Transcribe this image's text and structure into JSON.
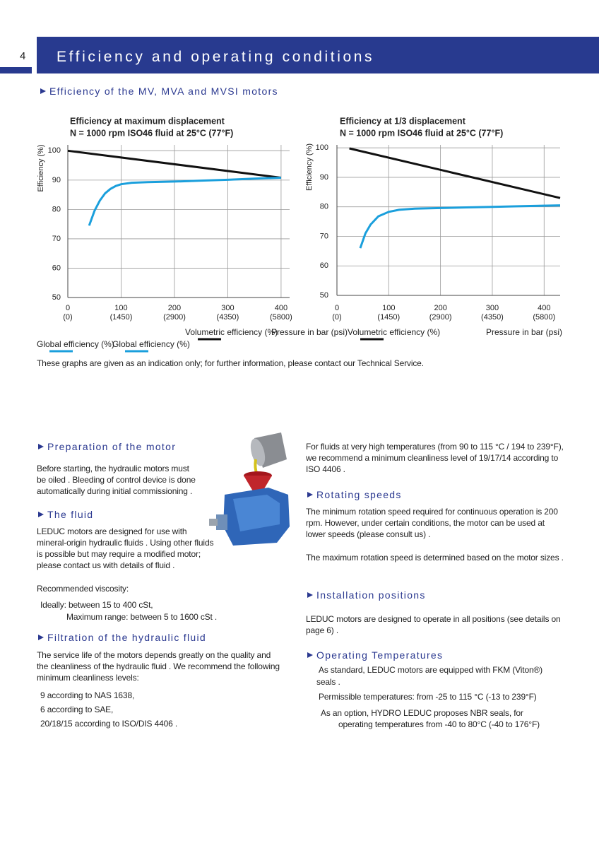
{
  "header": {
    "page_number": "4",
    "title": "Efficiency and operating conditions"
  },
  "section_heading": "Efficiency of the MV, MVA and MVSI motors",
  "chart_data": [
    {
      "type": "line",
      "title": "Efficiency at maximum displacement",
      "subtitle": "N = 1000 rpm ISO46 fluid at 25°C (77°F)",
      "x_label": "Pressure in bar (psi)",
      "y_label": "Efficiency (%)",
      "xlim": [
        0,
        416
      ],
      "xticks": [
        0,
        100,
        200,
        300,
        400
      ],
      "xtick_psi_labels": [
        "(0)",
        "(1450)",
        "(2900)",
        "(4350)",
        "(5800)"
      ],
      "ylim": [
        50,
        102
      ],
      "yticks": [
        50,
        60,
        70,
        80,
        90,
        100
      ],
      "grid": true,
      "series": [
        {
          "name": "Volumetric efficiency (%)",
          "color": "#111111",
          "x": [
            0,
            400
          ],
          "values": [
            100,
            90.8
          ]
        },
        {
          "name": "Global efficiency (%)",
          "color": "#1a9fdc",
          "x": [
            40,
            50,
            60,
            70,
            80,
            90,
            100,
            120,
            150,
            200,
            250,
            300,
            350,
            400
          ],
          "values": [
            74.5,
            79.5,
            83,
            85.5,
            87,
            88,
            88.6,
            89.1,
            89.3,
            89.5,
            89.8,
            90.1,
            90.5,
            90.8
          ]
        }
      ]
    },
    {
      "type": "line",
      "title": "Efficiency at 1/3 displacement",
      "subtitle": "N = 1000 rpm ISO46 fluid at 25°C (77°F)",
      "x_label": "Pressure in bar (psi)",
      "y_label": "Efficiency (%)",
      "xlim": [
        0,
        431
      ],
      "xticks": [
        0,
        100,
        200,
        300,
        400
      ],
      "xtick_psi_labels": [
        "(0)",
        "(1450)",
        "(2900)",
        "(4350)",
        "(5800)"
      ],
      "ylim": [
        50,
        101
      ],
      "yticks": [
        50,
        60,
        70,
        80,
        90,
        100
      ],
      "grid": true,
      "series": [
        {
          "name": "Volumetric efficiency (%)",
          "color": "#111111",
          "x": [
            24,
            431
          ],
          "values": [
            99.8,
            83
          ]
        },
        {
          "name": "Global efficiency (%)",
          "color": "#1a9fdc",
          "x": [
            45,
            55,
            65,
            80,
            100,
            120,
            150,
            200,
            250,
            300,
            350,
            431
          ],
          "values": [
            66,
            71,
            74,
            76.8,
            78.3,
            79,
            79.4,
            79.6,
            79.8,
            80,
            80.2,
            80.5
          ]
        }
      ]
    }
  ],
  "chart_note": "These graphs are given as an indication only; for further information, please contact our Technical Service.",
  "left_column": {
    "preparation": {
      "heading": "Preparation of the motor",
      "lines": [
        "Before starting, the hydraulic motors must",
        "be oiled . Bleeding of control device is done",
        "automatically during initial commissioning ."
      ]
    },
    "fluid": {
      "heading": "The fluid",
      "lines": [
        "LEDUC motors are designed for use with",
        "mineral-origin hydraulic fluids . Using other fluids",
        "is possible but may require a modified motor;",
        "please contact us with details of fluid ."
      ]
    },
    "viscosity": {
      "label": "Recommended viscosity:",
      "ideal": "Ideally: between 15 to 400 cSt,",
      "maximum": "Maximum range: between 5 to 1600 cSt ."
    },
    "filtration": {
      "heading": "Filtration of the hydraulic fluid",
      "lines": [
        "The service life of the motors depends greatly on the quality and",
        "the cleanliness of the hydraulic fluid . We recommend the following",
        "minimum cleanliness levels:"
      ],
      "levels": [
        "9 according to NAS 1638,",
        "6 according to SAE,",
        "20/18/15 according to ISO/DIS 4406 ."
      ]
    }
  },
  "right_column": {
    "high_temperature": {
      "lines": [
        "For fluids at very high temperatures (from 90 to 115 °C / 194 to 239°F),",
        "we recommend a minimum cleanliness level of 19/17/14 according to",
        "ISO 4406 ."
      ]
    },
    "rotating_speeds": {
      "heading": "Rotating speeds",
      "lines": [
        "The minimum rotation speed required for continuous operation is 200",
        "rpm. However, under certain conditions, the motor can be used at",
        "lower speeds (please consult us) ."
      ],
      "maximum": "The maximum rotation speed is determined based on the motor sizes ."
    },
    "installation": {
      "heading": "Installation positions",
      "lines": [
        "LEDUC motors are designed to operate in all positions (see details on",
        "page 6) ."
      ]
    },
    "temperatures": {
      "heading": "Operating Temperatures",
      "standard": "As standard, LEDUC motors are equipped with FKM (Viton®)",
      "standard_cont": "seals .",
      "permissible": "Permissible temperatures: from -25 to 115 °C (-13 to 239°F)",
      "option": "As an option, HYDRO LEDUC proposes NBR seals, for",
      "option_cont": "operating temperatures from -40 to 80°C (-40 to 176°F)"
    }
  }
}
